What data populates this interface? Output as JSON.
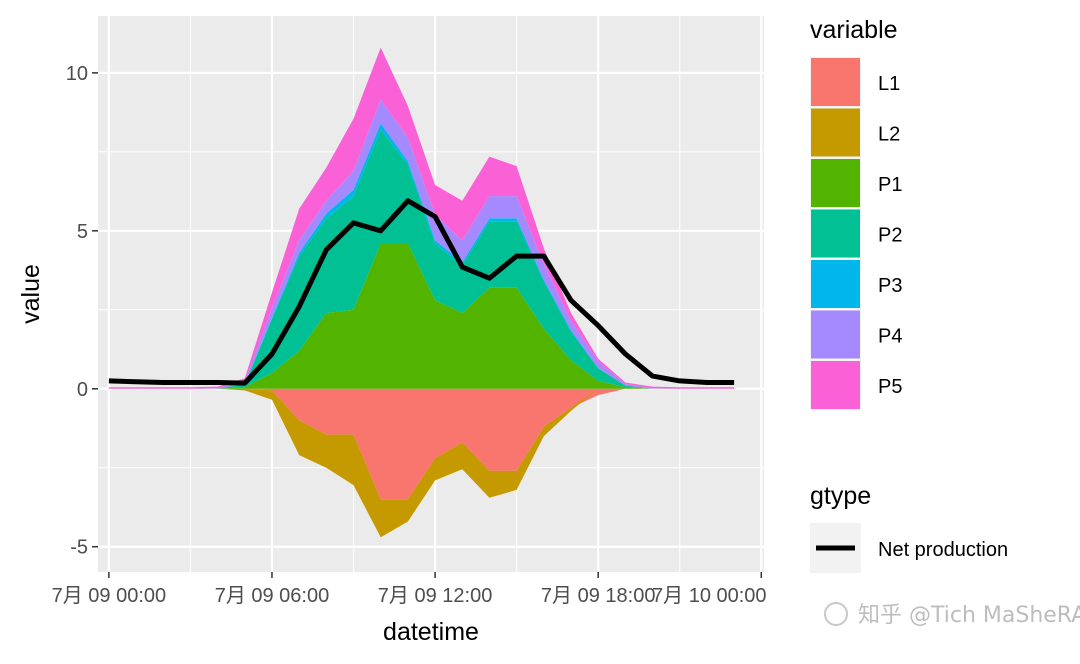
{
  "chart_data": {
    "type": "area",
    "stacked": true,
    "xlabel": "datetime",
    "ylabel": "value",
    "ylim": [
      -5.8,
      11.8
    ],
    "yticks": [
      -5,
      0,
      5,
      10
    ],
    "ytick_labels": [
      "-5",
      "0",
      "5",
      "10"
    ],
    "xlim_hours": [
      -0.4,
      24.1
    ],
    "xticks_hours": [
      0,
      6,
      12,
      18,
      24
    ],
    "xtick_labels": [
      "7月 09 00:00",
      "7月 09 06:00",
      "7月 09 12:00",
      "7月 09 18:00",
      "7月 10 00:00"
    ],
    "x_hours": [
      0,
      1,
      2,
      3,
      4,
      5,
      6,
      7,
      8,
      9,
      10,
      11,
      12,
      13,
      14,
      15,
      16,
      17,
      18,
      19,
      20,
      21,
      22,
      23
    ],
    "series": [
      {
        "name": "L1",
        "color": "#F8766D",
        "values": [
          0,
          0,
          0,
          0,
          0,
          0,
          -0.05,
          -1.0,
          -1.45,
          -1.45,
          -3.5,
          -3.5,
          -2.2,
          -1.7,
          -2.6,
          -2.6,
          -1.2,
          -0.6,
          -0.2,
          0,
          0,
          0,
          0,
          0
        ]
      },
      {
        "name": "L2",
        "color": "#C49A00",
        "values": [
          0,
          0,
          0,
          0,
          0,
          -0.05,
          -0.3,
          -1.1,
          -1.05,
          -1.6,
          -1.2,
          -0.7,
          -0.7,
          -0.85,
          -0.85,
          -0.6,
          -0.3,
          -0.1,
          0,
          0,
          0,
          0,
          0,
          0
        ]
      },
      {
        "name": "P1",
        "color": "#53B400",
        "values": [
          0,
          0,
          0,
          0,
          0,
          0.05,
          0.5,
          1.2,
          2.4,
          2.5,
          4.6,
          4.6,
          2.8,
          2.4,
          3.2,
          3.2,
          1.9,
          0.9,
          0.25,
          0.05,
          0,
          0,
          0,
          0
        ]
      },
      {
        "name": "P2",
        "color": "#00C094",
        "values": [
          0,
          0,
          0,
          0,
          0,
          0.1,
          1.7,
          3.0,
          3.0,
          3.6,
          3.6,
          2.5,
          1.8,
          1.5,
          2.1,
          2.1,
          1.5,
          0.9,
          0.4,
          0.05,
          0,
          0,
          0,
          0
        ]
      },
      {
        "name": "P3",
        "color": "#00B6EB",
        "values": [
          0,
          0,
          0,
          0,
          0,
          0,
          0.05,
          0.1,
          0.15,
          0.2,
          0.2,
          0.1,
          0.1,
          0.1,
          0.1,
          0.1,
          0.05,
          0.05,
          0,
          0,
          0,
          0,
          0,
          0
        ]
      },
      {
        "name": "P4",
        "color": "#A58AFF",
        "values": [
          0,
          0,
          0,
          0,
          0.02,
          0.08,
          0.3,
          0.4,
          0.4,
          0.6,
          0.75,
          0.75,
          0.8,
          0.7,
          0.7,
          0.7,
          0.5,
          0.3,
          0.2,
          0.05,
          0.02,
          0,
          0,
          0
        ]
      },
      {
        "name": "P5",
        "color": "#FB61D7",
        "values": [
          0.05,
          0.05,
          0.05,
          0.05,
          0.05,
          0.1,
          0.5,
          1.0,
          1.05,
          1.65,
          1.65,
          1.0,
          0.95,
          1.25,
          1.25,
          0.95,
          0.5,
          0.25,
          0.1,
          0.05,
          0.05,
          0.05,
          0.05,
          0.05
        ]
      }
    ],
    "net_production": {
      "name": "Net production",
      "color": "#000000",
      "values": [
        0.25,
        0.22,
        0.2,
        0.2,
        0.2,
        0.18,
        1.1,
        2.6,
        4.4,
        5.25,
        5.0,
        5.95,
        5.45,
        3.85,
        3.5,
        4.2,
        4.2,
        2.8,
        2.0,
        1.1,
        0.4,
        0.25,
        0.2,
        0.2
      ]
    },
    "legend": {
      "fill_title": "variable",
      "fill_items": [
        "L1",
        "L2",
        "P1",
        "P2",
        "P3",
        "P4",
        "P5"
      ],
      "line_title": "gtype",
      "line_items": [
        "Net production"
      ],
      "placement": "right"
    }
  },
  "watermark": "知乎 @Tich  MaSheRA rich"
}
